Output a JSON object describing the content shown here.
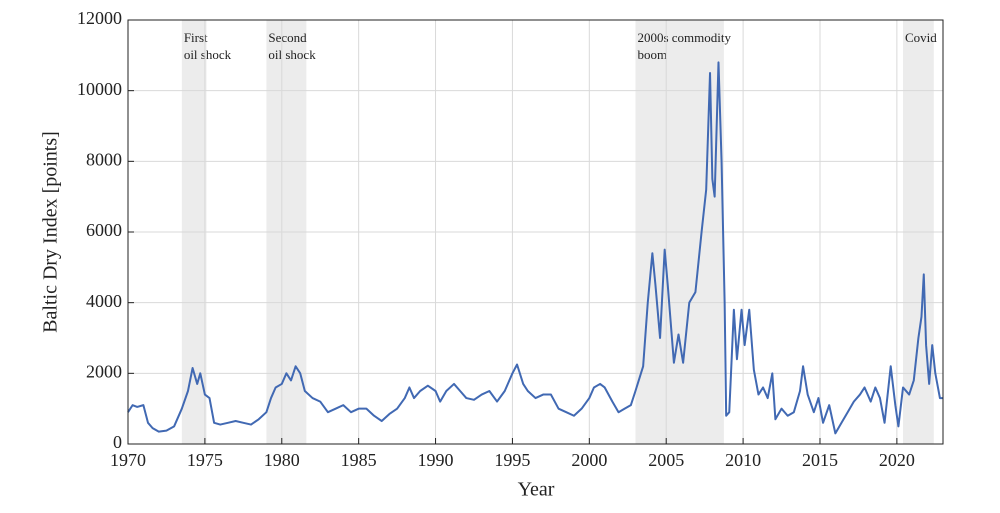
{
  "chart_data": {
    "type": "line",
    "x_label": "Year",
    "y_label": "Baltic Dry Index [points]",
    "xlim": [
      1970,
      2023
    ],
    "xticks": [
      1970,
      1975,
      1980,
      1985,
      1990,
      1995,
      2000,
      2005,
      2010,
      2015,
      2020
    ],
    "ylim": [
      0,
      12000
    ],
    "yticks": [
      0,
      2000,
      4000,
      6000,
      8000,
      10000,
      12000
    ],
    "grid": true,
    "shaded_regions": [
      {
        "start": 1973.5,
        "end": 1975.1,
        "label": [
          "First",
          "oil shock"
        ]
      },
      {
        "start": 1979.0,
        "end": 1981.6,
        "label": [
          "Second",
          "oil shock"
        ]
      },
      {
        "start": 2003.0,
        "end": 2008.75,
        "label": [
          "2000s commodity",
          "boom"
        ]
      },
      {
        "start": 2020.4,
        "end": 2022.4,
        "label": [
          "Covid"
        ]
      }
    ],
    "series": [
      {
        "color": "#4169b3",
        "x": [
          1970,
          1970.3,
          1970.6,
          1971,
          1971.3,
          1971.6,
          1972,
          1972.5,
          1973,
          1973.5,
          1973.9,
          1974.2,
          1974.5,
          1974.7,
          1975,
          1975.3,
          1975.6,
          1976,
          1976.5,
          1977,
          1977.5,
          1978,
          1978.5,
          1979,
          1979.3,
          1979.6,
          1980,
          1980.3,
          1980.6,
          1980.9,
          1981.2,
          1981.5,
          1982,
          1982.5,
          1983,
          1983.5,
          1984,
          1984.5,
          1985,
          1985.5,
          1986,
          1986.5,
          1987,
          1987.5,
          1988,
          1988.3,
          1988.6,
          1989,
          1989.5,
          1990,
          1990.3,
          1990.7,
          1991.2,
          1991.6,
          1992,
          1992.5,
          1993,
          1993.5,
          1994,
          1994.5,
          1995,
          1995.3,
          1995.7,
          1996,
          1996.5,
          1997,
          1997.5,
          1998,
          1998.5,
          1999,
          1999.5,
          2000,
          2000.3,
          2000.7,
          2001,
          2001.5,
          2001.9,
          2002.3,
          2002.7,
          2003,
          2003.5,
          2003.8,
          2004.1,
          2004.3,
          2004.6,
          2004.9,
          2005.1,
          2005.5,
          2005.8,
          2006.1,
          2006.5,
          2006.9,
          2007.3,
          2007.6,
          2007.85,
          2008.0,
          2008.15,
          2008.4,
          2008.6,
          2008.8,
          2008.9,
          2009.1,
          2009.4,
          2009.6,
          2009.9,
          2010.1,
          2010.4,
          2010.7,
          2011,
          2011.3,
          2011.6,
          2011.9,
          2012.1,
          2012.5,
          2012.9,
          2013.3,
          2013.7,
          2013.9,
          2014.2,
          2014.6,
          2014.9,
          2015.2,
          2015.6,
          2016.0,
          2016.4,
          2016.8,
          2017.2,
          2017.6,
          2017.9,
          2018.3,
          2018.6,
          2018.9,
          2019.2,
          2019.6,
          2019.9,
          2020.1,
          2020.4,
          2020.8,
          2021.1,
          2021.4,
          2021.6,
          2021.75,
          2021.9,
          2022.1,
          2022.3,
          2022.5,
          2022.8,
          2023
        ],
        "values": [
          900,
          1100,
          1050,
          1100,
          600,
          450,
          350,
          380,
          500,
          1000,
          1500,
          2150,
          1700,
          2000,
          1400,
          1300,
          600,
          550,
          600,
          650,
          600,
          550,
          700,
          900,
          1300,
          1600,
          1700,
          2000,
          1800,
          2200,
          2000,
          1500,
          1300,
          1200,
          900,
          1000,
          1100,
          900,
          1000,
          1000,
          800,
          650,
          850,
          1000,
          1300,
          1600,
          1300,
          1500,
          1650,
          1500,
          1200,
          1500,
          1700,
          1500,
          1300,
          1250,
          1400,
          1500,
          1200,
          1500,
          2000,
          2250,
          1700,
          1500,
          1300,
          1400,
          1400,
          1000,
          900,
          800,
          1000,
          1300,
          1600,
          1700,
          1600,
          1200,
          900,
          1000,
          1100,
          1500,
          2200,
          4000,
          5400,
          4500,
          3000,
          5500,
          4500,
          2300,
          3100,
          2300,
          4000,
          4300,
          6000,
          7200,
          10500,
          7500,
          7000,
          10800,
          8000,
          4000,
          800,
          900,
          3800,
          2400,
          3800,
          2800,
          3800,
          2100,
          1400,
          1600,
          1300,
          2000,
          700,
          1000,
          800,
          900,
          1500,
          2200,
          1400,
          900,
          1300,
          600,
          1100,
          300,
          600,
          900,
          1200,
          1400,
          1600,
          1200,
          1600,
          1300,
          600,
          2200,
          1100,
          500,
          1600,
          1400,
          1800,
          3000,
          3600,
          4800,
          2800,
          1700,
          2800,
          2000,
          1300,
          1300
        ]
      }
    ]
  }
}
